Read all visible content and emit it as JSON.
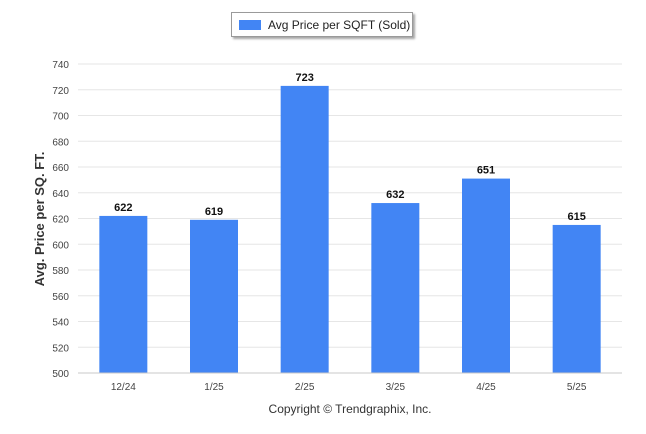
{
  "chart_data": {
    "type": "bar",
    "categories": [
      "12/24",
      "1/25",
      "2/25",
      "3/25",
      "4/25",
      "5/25"
    ],
    "series": [
      {
        "name": "Avg Price per SQFT (Sold)",
        "values": [
          622,
          619,
          723,
          632,
          651,
          615
        ]
      }
    ],
    "data_labels": [
      "622",
      "619",
      "723",
      "632",
      "651",
      "615"
    ],
    "ylabel": "Avg. Price per SQ. FT.",
    "xlabel": "",
    "ylim": [
      500,
      740
    ],
    "yticks": [
      500,
      520,
      540,
      560,
      580,
      600,
      620,
      640,
      660,
      680,
      700,
      720,
      740
    ],
    "grid": true,
    "legend_position": "top-center"
  },
  "colors": {
    "bar": "#4285f4",
    "grid": "#e6e6e6",
    "axis": "#c8c8c8"
  },
  "footer": "Copyright © Trendgraphix, Inc."
}
